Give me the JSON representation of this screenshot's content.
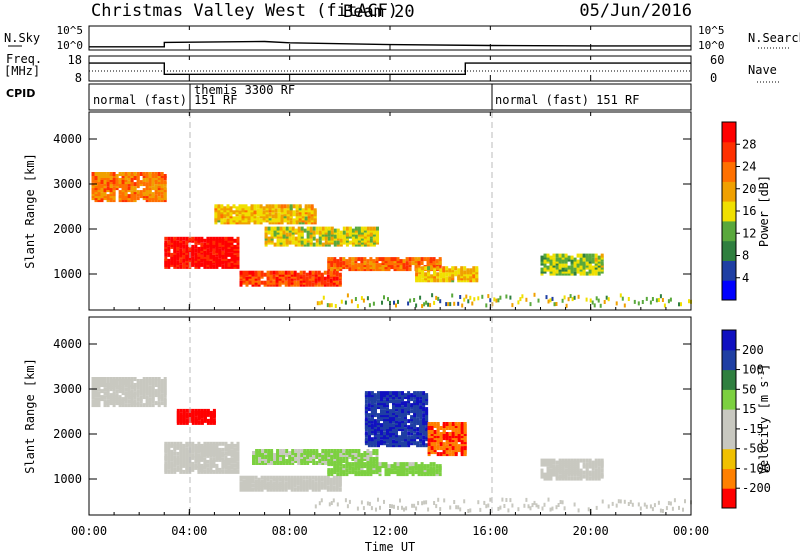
{
  "header": {
    "title": "Christmas Valley West (fitACF)",
    "beam": "Beam 20",
    "date": "05/Jun/2016"
  },
  "nsky_panel": {
    "label": "N.Sky",
    "right_label": "N.Search",
    "y_ticks": [
      "10^5",
      "10^0"
    ]
  },
  "freq_panel": {
    "label_line1": "Freq.",
    "label_line2": "[MHz]",
    "right_label": "Nave",
    "left_ticks": [
      "18",
      "8"
    ],
    "right_ticks": [
      "60",
      "0"
    ]
  },
  "cpid": {
    "label": "CPID",
    "segments": [
      {
        "text": "normal (fast) 151 RF"
      },
      {
        "text": "themis 3300 RF"
      },
      {
        "text": "normal (fast) 151 RF"
      }
    ]
  },
  "colorbars": {
    "power": {
      "label": "Power [dB]",
      "ticks": [
        "28",
        "24",
        "20",
        "16",
        "12",
        "8",
        "4"
      ],
      "colors": [
        "#0000ff",
        "#1f3fa3",
        "#2f7f3f",
        "#59a83c",
        "#f0e000",
        "#f0a000",
        "#ff7000",
        "#ff3000",
        "#ff0000"
      ]
    },
    "velocity": {
      "label": "Velocity [m s",
      "label_sup": "-1",
      "label_end": "]",
      "ticks": [
        "200",
        "100",
        "50",
        "15",
        "-15",
        "-50",
        "-100",
        "-200"
      ],
      "colors": [
        "#1010c0",
        "#1f3fa3",
        "#2f7f3f",
        "#7cd040",
        "#c8c8c0",
        "#c8c8c0",
        "#f0c000",
        "#ff8000",
        "#ff0000"
      ]
    }
  },
  "chart_data": [
    {
      "type": "line",
      "name": "N.Sky / N.Search",
      "x": [
        0,
        3,
        3,
        7,
        8,
        12,
        16,
        20,
        24
      ],
      "values": [
        0.5,
        0.5,
        1.5,
        1.7,
        1.4,
        1.0,
        0.8,
        0.7,
        0.7
      ],
      "ylim": [
        0,
        5
      ]
    },
    {
      "type": "line",
      "name": "Freq / Nave",
      "x": [
        0,
        3,
        3,
        15,
        15,
        24
      ],
      "values": [
        15.7,
        15.7,
        10.6,
        10.6,
        15.7,
        15.7
      ],
      "ylim": [
        8,
        18
      ]
    },
    {
      "type": "heatmap",
      "title": "Power",
      "xlabel": "Time UT",
      "ylabel": "Slant Range [km]",
      "x_ticks": [
        "00:00",
        "04:00",
        "08:00",
        "12:00",
        "16:00",
        "20:00",
        "00:00"
      ],
      "y_ticks": [
        "1000",
        "2000",
        "3000",
        "4000"
      ],
      "xlim": [
        0,
        24
      ],
      "ylim": [
        200,
        4600
      ],
      "clim": [
        0,
        32
      ],
      "features": [
        {
          "t": [
            0.1,
            3.0
          ],
          "r": [
            2600,
            3200
          ],
          "v": 22
        },
        {
          "t": [
            3.0,
            6.0
          ],
          "r": [
            1100,
            1750
          ],
          "v": 30
        },
        {
          "t": [
            6.0,
            10.0
          ],
          "r": [
            700,
            1000
          ],
          "v": 26
        },
        {
          "t": [
            7.0,
            11.5
          ],
          "r": [
            1600,
            2000
          ],
          "v": 16
        },
        {
          "t": [
            9.5,
            14.0
          ],
          "r": [
            1050,
            1300
          ],
          "v": 24
        },
        {
          "t": [
            13.0,
            15.5
          ],
          "r": [
            800,
            1100
          ],
          "v": 18
        },
        {
          "t": [
            18.0,
            20.5
          ],
          "r": [
            950,
            1400
          ],
          "v": 14
        },
        {
          "t": [
            5.0,
            9.0
          ],
          "r": [
            2100,
            2500
          ],
          "v": 18
        }
      ]
    },
    {
      "type": "heatmap",
      "title": "Velocity",
      "xlabel": "Time UT",
      "ylabel": "Slant Range [km]",
      "x_ticks": [
        "00:00",
        "04:00",
        "08:00",
        "12:00",
        "16:00",
        "20:00",
        "00:00"
      ],
      "y_ticks": [
        "1000",
        "2000",
        "3000",
        "4000"
      ],
      "xlim": [
        0,
        24
      ],
      "ylim": [
        200,
        4600
      ],
      "clim": [
        -200,
        200
      ],
      "features": [
        {
          "t": [
            0.1,
            3.0
          ],
          "r": [
            2600,
            3200
          ],
          "v": 0
        },
        {
          "t": [
            3.0,
            6.0
          ],
          "r": [
            1100,
            1750
          ],
          "v": 0
        },
        {
          "t": [
            6.0,
            10.0
          ],
          "r": [
            700,
            1000
          ],
          "v": 0
        },
        {
          "t": [
            6.5,
            11.5
          ],
          "r": [
            1300,
            1600
          ],
          "v": 30
        },
        {
          "t": [
            9.5,
            14.0
          ],
          "r": [
            1050,
            1300
          ],
          "v": 40
        },
        {
          "t": [
            11.0,
            13.5
          ],
          "r": [
            1700,
            2900
          ],
          "v": 150
        },
        {
          "t": [
            13.5,
            15.0
          ],
          "r": [
            1500,
            2200
          ],
          "v": -150
        },
        {
          "t": [
            18.0,
            20.5
          ],
          "r": [
            950,
            1400
          ],
          "v": 0
        },
        {
          "t": [
            3.5,
            5.0
          ],
          "r": [
            2200,
            2500
          ],
          "v": -200
        }
      ]
    }
  ]
}
